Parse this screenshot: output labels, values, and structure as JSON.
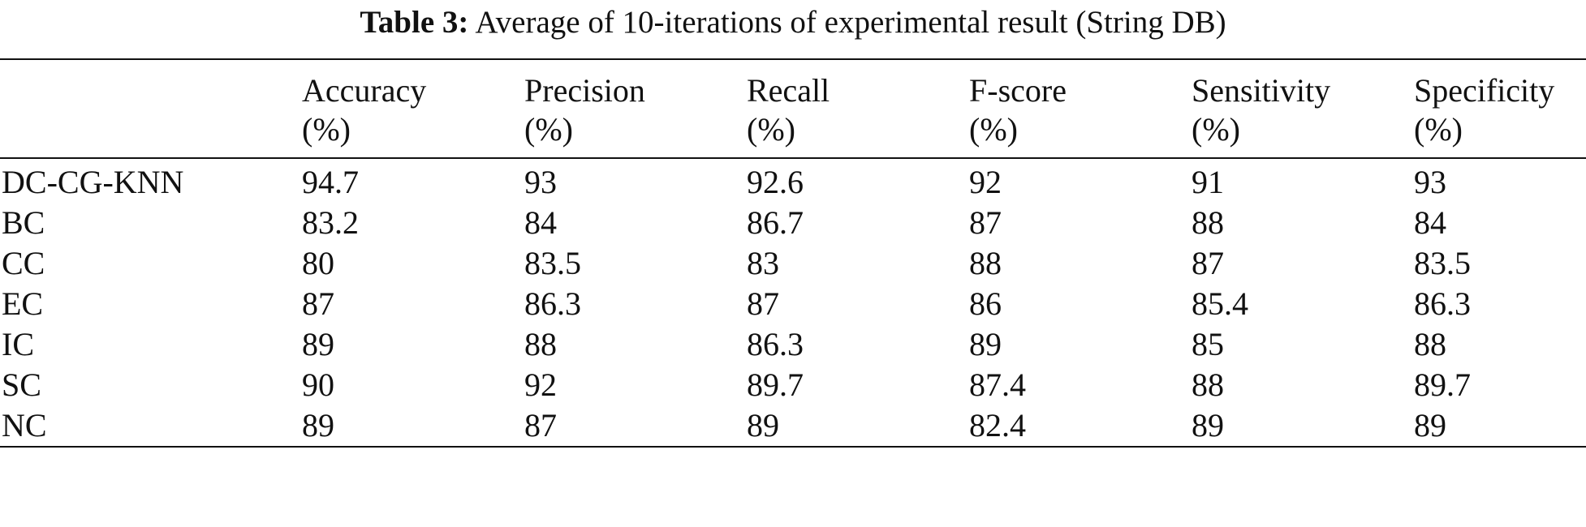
{
  "caption": {
    "label": "Table 3:",
    "text": "Average of 10-iterations of experimental result (String DB)"
  },
  "table": {
    "columns": [
      {
        "name": "",
        "unit": ""
      },
      {
        "name": "Accuracy",
        "unit": "(%)"
      },
      {
        "name": "Precision",
        "unit": "(%)"
      },
      {
        "name": "Recall",
        "unit": "(%)"
      },
      {
        "name": "F-score",
        "unit": "(%)"
      },
      {
        "name": "Sensitivity",
        "unit": "(%)"
      },
      {
        "name": "Specificity",
        "unit": "(%)"
      }
    ],
    "rows": [
      {
        "method": "DC-CG-KNN",
        "values": [
          "94.7",
          "93",
          "92.6",
          "92",
          "91",
          "93"
        ]
      },
      {
        "method": "BC",
        "values": [
          "83.2",
          "84",
          "86.7",
          "87",
          "88",
          "84"
        ]
      },
      {
        "method": "CC",
        "values": [
          "80",
          "83.5",
          "83",
          "88",
          "87",
          "83.5"
        ]
      },
      {
        "method": "EC",
        "values": [
          "87",
          "86.3",
          "87",
          "86",
          "85.4",
          "86.3"
        ]
      },
      {
        "method": "IC",
        "values": [
          "89",
          "88",
          "86.3",
          "89",
          "85",
          "88"
        ]
      },
      {
        "method": "SC",
        "values": [
          "90",
          "92",
          "89.7",
          "87.4",
          "88",
          "89.7"
        ]
      },
      {
        "method": "NC",
        "values": [
          "89",
          "87",
          "89",
          "82.4",
          "89",
          "89"
        ]
      }
    ]
  }
}
